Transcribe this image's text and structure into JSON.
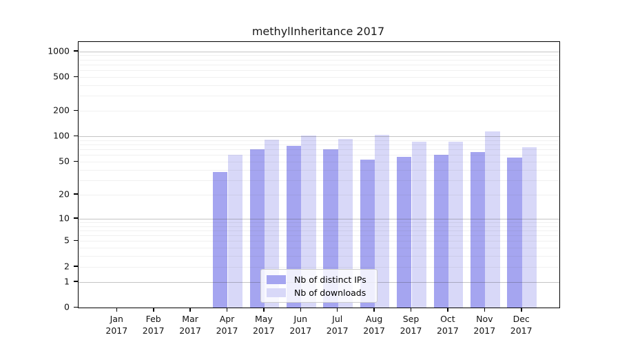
{
  "title": "methylInheritance 2017",
  "chart_data": {
    "type": "bar",
    "title": "methylInheritance 2017",
    "x_categories": [
      "Jan",
      "Feb",
      "Mar",
      "Apr",
      "May",
      "Jun",
      "Jul",
      "Aug",
      "Sep",
      "Oct",
      "Nov",
      "Dec"
    ],
    "year_label": "2017",
    "series": [
      {
        "name": "Nb of distinct IPs",
        "color": "#a5a5f0",
        "values": [
          0,
          0,
          0,
          38,
          70,
          77,
          70,
          53,
          57,
          60,
          65,
          56
        ]
      },
      {
        "name": "Nb of downloads",
        "color": "#d8d8f8",
        "values": [
          0,
          0,
          0,
          61,
          91,
          102,
          94,
          105,
          86,
          86,
          115,
          74
        ]
      }
    ],
    "y_ticks": [
      0,
      1,
      2,
      5,
      10,
      20,
      50,
      100,
      200,
      500,
      1000
    ],
    "y_scale": "log1p",
    "ylim": [
      0,
      1200
    ],
    "grid": "horizontal major+minor",
    "legend_position": "bottom-center",
    "colors": {
      "distinct_ips_bar": "#a5a5f0",
      "downloads_bar": "#d8d8f8",
      "major_gridline": "#c8c8c8",
      "minor_gridline": "#f0f0f0",
      "axis": "#000000"
    }
  }
}
